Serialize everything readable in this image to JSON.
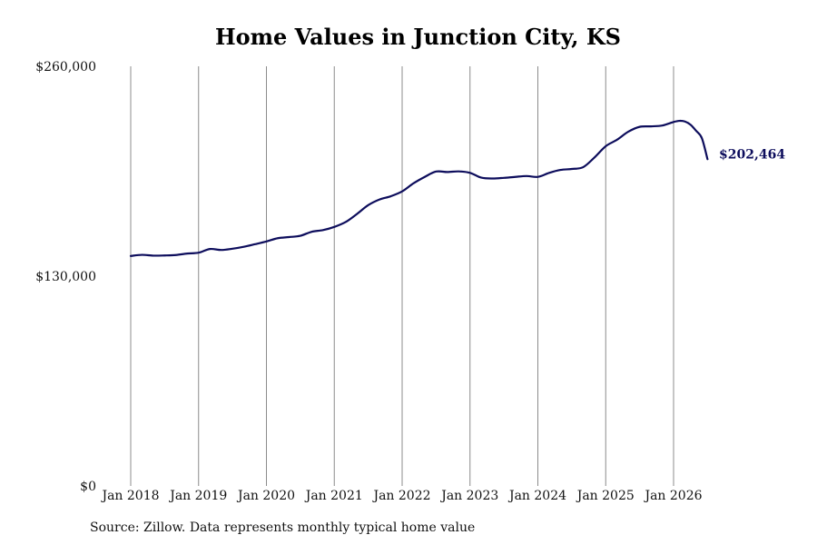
{
  "chart_data": {
    "type": "line",
    "title": "Home Values in Junction City, KS",
    "xlabel": "",
    "ylabel": "",
    "ylim": [
      0,
      260000
    ],
    "yticks": [
      "$0",
      "$130,000",
      "$260,000"
    ],
    "yticks_values": [
      0,
      130000,
      260000
    ],
    "xticks": [
      "Jan 2018",
      "Jan 2019",
      "Jan 2020",
      "Jan 2021",
      "Jan 2022",
      "Jan 2023",
      "Jan 2024",
      "Jan 2025",
      "Jan 2026"
    ],
    "xticks_values": [
      "2018-01",
      "2019-01",
      "2020-01",
      "2021-01",
      "2022-01",
      "2023-01",
      "2024-01",
      "2025-01",
      "2026-01"
    ],
    "grid": "vertical",
    "series_color": "#0d0d5c",
    "end_label": "$202,464",
    "series": [
      {
        "x": [
          "2018-01",
          "2018-03",
          "2018-05",
          "2018-07",
          "2018-09",
          "2018-11",
          "2019-01",
          "2019-03",
          "2019-05",
          "2019-07",
          "2019-09",
          "2019-11",
          "2020-01",
          "2020-03",
          "2020-05",
          "2020-07",
          "2020-09",
          "2020-11",
          "2021-01",
          "2021-03",
          "2021-05",
          "2021-07",
          "2021-09",
          "2021-11",
          "2022-01",
          "2022-03",
          "2022-05",
          "2022-07",
          "2022-09",
          "2022-11",
          "2023-01",
          "2023-03",
          "2023-05",
          "2023-07",
          "2023-09",
          "2023-11",
          "2024-01",
          "2024-03",
          "2024-05",
          "2024-07",
          "2024-09",
          "2024-11",
          "2025-01",
          "2025-03",
          "2025-05",
          "2025-07",
          "2025-09",
          "2025-11",
          "2026-01",
          "2026-02",
          "2026-03",
          "2026-04",
          "2026-05",
          "2026-06",
          "2026-07"
        ],
        "values": [
          142500,
          143200,
          142700,
          142800,
          143100,
          144000,
          144500,
          146800,
          146200,
          147000,
          148200,
          149800,
          151500,
          153500,
          154200,
          155000,
          157500,
          158500,
          160500,
          163500,
          168500,
          174000,
          177500,
          179500,
          182500,
          187500,
          191500,
          194800,
          194500,
          194900,
          194000,
          191000,
          190500,
          190900,
          191500,
          192000,
          191500,
          194000,
          195800,
          196400,
          197500,
          203500,
          210500,
          214500,
          219500,
          222500,
          222800,
          223300,
          225500,
          226200,
          225800,
          223800,
          220000,
          215500,
          202464
        ]
      }
    ]
  },
  "footer": {
    "source": "Source: Zillow. Data represents monthly typical home value"
  }
}
